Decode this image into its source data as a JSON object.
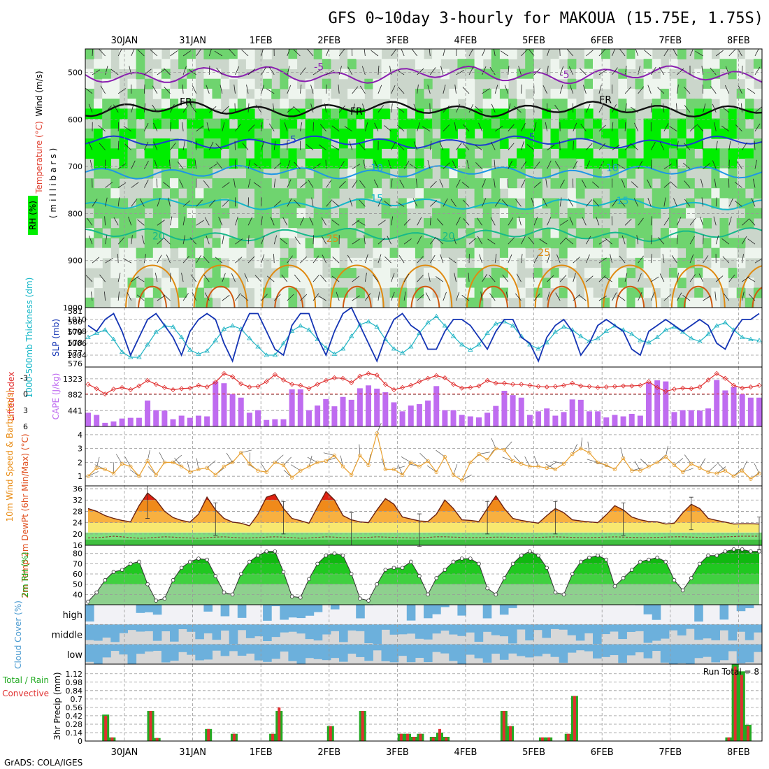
{
  "header": {
    "title": "GFS 0~10day 3-hourly for MAKOUA (15.75E, 1.75S)",
    "credit": "GrADS: COLA/IGES"
  },
  "colors": {
    "rh_light": "#eef5ee",
    "rh_gray": "#cbd6cb",
    "rh_mid": "#6fd46f",
    "rh_bright": "#00ee00",
    "temp_purple": "#8a1fb0",
    "temp_blue": "#1e3ccf",
    "temp_lightblue": "#1e96e6",
    "temp_cyan": "#16b7c8",
    "temp_teal": "#16b98a",
    "temp_orange": "#e08a10",
    "slp_line": "#1434b4",
    "thickness_line": "#20b4c4",
    "lifted_index": "#e03030",
    "cape_bar": "#bf6cf0",
    "wind_speed": "#e8a030",
    "temp_fill": "#f08a1a",
    "temp_hot": "#e02010",
    "dewpt_fill": "#60d060",
    "rh_fill": "#18c818",
    "cloud_blue": "#6cb0dc",
    "cloud_gray": "#d8d8d8",
    "rain_total": "#22aa22",
    "rain_convective": "#e03030"
  },
  "chart_data": [
    {
      "type": "heatmap",
      "name": "upper-air",
      "ylabel": "(millibars)",
      "legend_labels": [
        "Wind (m/s)",
        "Temperature (°C)",
        "RH (%)"
      ],
      "x_date_ticks": [
        "30JAN",
        "31JAN",
        "1FEB",
        "2FEB",
        "3FEB",
        "4FEB",
        "5FEB",
        "6FEB",
        "7FEB",
        "8FEB"
      ],
      "y_ticks": [
        500,
        600,
        700,
        800,
        900,
        1000
      ],
      "ylim": [
        1000,
        450
      ],
      "contour_labels": [
        {
          "text": "-5",
          "day": 2.85,
          "p": 495
        },
        {
          "text": "-5",
          "day": 6.45,
          "p": 512
        },
        {
          "text": "FR",
          "day": 0.9,
          "p": 570
        },
        {
          "text": "FR",
          "day": 3.4,
          "p": 590
        },
        {
          "text": "FR",
          "day": 7.05,
          "p": 565
        },
        {
          "text": "-5",
          "day": 2.45,
          "p": 650
        },
        {
          "text": "-5",
          "day": 5.95,
          "p": 645
        },
        {
          "text": "10",
          "day": 3.7,
          "p": 710
        },
        {
          "text": "10",
          "day": 7.15,
          "p": 710
        },
        {
          "text": "15",
          "day": 3.7,
          "p": 775
        },
        {
          "text": "15",
          "day": 7.3,
          "p": 780
        },
        {
          "text": "20",
          "day": 0.5,
          "p": 855
        },
        {
          "text": "20",
          "day": 4.75,
          "p": 855
        },
        {
          "text": "25",
          "day": 3.05,
          "p": 860
        },
        {
          "text": "25",
          "day": 6.15,
          "p": 890
        }
      ],
      "isotherms": [
        {
          "name": "-5 upper",
          "color_key": "temp_purple",
          "base_p": 505,
          "amp": 12
        },
        {
          "name": "FR",
          "color_key": "temp_black",
          "base_p": 578,
          "amp": 10
        },
        {
          "name": "-5",
          "color_key": "temp_blue",
          "base_p": 648,
          "amp": 8
        },
        {
          "name": "10",
          "color_key": "temp_lightblue",
          "base_p": 712,
          "amp": 9
        },
        {
          "name": "15",
          "color_key": "temp_cyan",
          "base_p": 780,
          "amp": 8
        },
        {
          "name": "20",
          "color_key": "temp_teal",
          "base_p": 845,
          "amp": 9
        }
      ]
    },
    {
      "type": "line",
      "name": "slp-thickness",
      "ylabel_left": "1000-500mb Thickness (dm)",
      "ylabel_right": "SLP (mb)",
      "y_ticks_left": [
        576,
        577,
        578,
        579,
        580,
        581
      ],
      "y_ticks_right": [
        1004,
        1006,
        1008,
        1010
      ],
      "ylim_right": [
        1002,
        1012
      ],
      "slp_values": [
        1009,
        1008,
        1010,
        1011,
        1008,
        1004,
        1007,
        1010,
        1011,
        1009,
        1007,
        1004,
        1008,
        1010,
        1011,
        1010,
        1006,
        1003,
        1008,
        1011,
        1011,
        1008,
        1005,
        1004,
        1009,
        1011,
        1011,
        1007,
        1004,
        1008,
        1011,
        1012,
        1009,
        1006,
        1003,
        1007,
        1010,
        1011,
        1009,
        1008,
        1005,
        1005,
        1008,
        1010,
        1010,
        1009,
        1007,
        1005,
        1008,
        1010,
        1010,
        1007,
        1006,
        1003,
        1007,
        1009,
        1010,
        1008,
        1004,
        1006,
        1009,
        1010,
        1009,
        1008,
        1005,
        1004,
        1008,
        1009,
        1010,
        1009,
        1008,
        1009,
        1010,
        1009,
        1006,
        1005,
        1008,
        1010,
        1010,
        1011
      ],
      "thickness_values": [
        578.5,
        578.9,
        579.2,
        578.3,
        577.1,
        576.6,
        576.6,
        577.8,
        579.0,
        579.6,
        579.5,
        578.5,
        577.3,
        576.9,
        577.2,
        578.2,
        579.3,
        579.6,
        579.3,
        578.4,
        577.6,
        576.8,
        576.8,
        577.9,
        579.1,
        579.6,
        579.2,
        578.3,
        577.5,
        576.9,
        577.4,
        578.6,
        579.7,
        580.0,
        579.5,
        578.3,
        577.4,
        577.0,
        577.6,
        578.9,
        579.9,
        580.5,
        579.6,
        578.6,
        577.8,
        577.3,
        577.8,
        578.9,
        579.8,
        580.0,
        579.6,
        578.6,
        577.8,
        577.4,
        578.0,
        579.0,
        579.5,
        579.2,
        578.6,
        578.1,
        578.4,
        579.1,
        579.6,
        579.2,
        578.8,
        578.2,
        578.0,
        578.5,
        579.2,
        579.5,
        579.0,
        578.4,
        578.1,
        578.8,
        579.6,
        579.9,
        579.2,
        578.5,
        578.3,
        578.2
      ]
    },
    {
      "type": "bar",
      "name": "cape-lifted-index",
      "ylabel_left": "Lifted Index",
      "ylabel_right": "CAPE (J/kg)",
      "y_ticks_left": [
        -3,
        0,
        3,
        6
      ],
      "y_ticks_right": [
        441,
        882,
        1323
      ],
      "ylim_left": [
        -5,
        6
      ],
      "ylim_right": [
        0,
        1650
      ],
      "cape_values": [
        380,
        320,
        100,
        140,
        220,
        240,
        240,
        720,
        450,
        440,
        200,
        300,
        240,
        300,
        280,
        1250,
        1200,
        900,
        800,
        380,
        450,
        180,
        200,
        200,
        1030,
        1030,
        450,
        580,
        760,
        560,
        820,
        740,
        1060,
        1140,
        1050,
        950,
        670,
        420,
        580,
        620,
        720,
        1120,
        450,
        450,
        320,
        280,
        250,
        380,
        570,
        990,
        870,
        800,
        320,
        420,
        500,
        300,
        400,
        750,
        740,
        420,
        420,
        250,
        320,
        280,
        350,
        300,
        1220,
        1280,
        1250,
        400,
        450,
        450,
        440,
        500,
        1290,
        1000,
        1100,
        900,
        800,
        800
      ],
      "lifted_index": [
        -1.8,
        -1.0,
        0.0,
        -0.9,
        -1.2,
        -0.8,
        -1.5,
        -2.5,
        -1.8,
        -1.2,
        -0.8,
        -1.0,
        -1.1,
        -1.6,
        -1.3,
        -2.2,
        -3.8,
        -3.2,
        -1.9,
        -1.3,
        -1.4,
        -2.3,
        -3.6,
        -2.6,
        -1.8,
        -1.6,
        -1.0,
        -1.8,
        -2.5,
        -3.0,
        -2.9,
        -2.1,
        -3.3,
        -3.8,
        -3.5,
        -1.8,
        -0.8,
        -1.2,
        -1.6,
        -2.3,
        -2.9,
        -3.4,
        -3.0,
        -1.8,
        -1.1,
        -1.2,
        -1.5,
        -2.5,
        -2.0,
        -2.0,
        -1.8,
        -1.8,
        -1.6,
        -1.4,
        -1.3,
        -1.4,
        -1.6,
        -2.0,
        -1.5,
        -1.4,
        -1.2,
        -1.3,
        -1.4,
        -1.5,
        -1.5,
        -1.6,
        -2.3,
        -1.2,
        -0.5,
        -0.9,
        -1.1,
        -1.0,
        -1.3,
        -2.6,
        -3.8,
        -2.9,
        -1.6,
        -1.1,
        -1.3,
        -1.6
      ]
    },
    {
      "type": "line",
      "name": "wind-10m",
      "ylabel": "10m Wind Speed & Barbs (m/s)",
      "y_ticks": [
        1,
        2,
        3,
        4
      ],
      "ylim": [
        0.3,
        4.6
      ],
      "values": [
        1.0,
        1.6,
        1.5,
        1.2,
        1.9,
        1.7,
        1.0,
        2.1,
        1.1,
        2.0,
        2.0,
        1.7,
        1.3,
        1.5,
        1.6,
        1.1,
        1.7,
        2.0,
        2.7,
        1.9,
        1.4,
        1.3,
        2.0,
        1.8,
        0.9,
        1.4,
        1.7,
        2.0,
        2.1,
        2.5,
        1.7,
        1.1,
        2.5,
        1.8,
        4.1,
        1.5,
        1.5,
        1.1,
        2.0,
        1.7,
        2.1,
        1.3,
        2.4,
        1.1,
        0.7,
        2.0,
        2.6,
        2.2,
        3.0,
        2.9,
        2.1,
        1.9,
        1.7,
        1.7,
        1.6,
        1.5,
        1.9,
        2.6,
        3.0,
        2.7,
        2.0,
        1.8,
        1.5,
        2.3,
        1.4,
        1.4,
        1.7,
        2.0,
        2.4,
        1.8,
        1.3,
        1.9,
        1.6,
        1.3,
        1.2,
        1.4,
        1.0,
        1.4,
        0.8,
        1.2
      ]
    },
    {
      "type": "area",
      "name": "temp-dewpt",
      "ylabel": "2m Temp 2m DewPt (6hr Min/Max) (°C)",
      "y_ticks": [
        16,
        20,
        24,
        28,
        32,
        36
      ],
      "ylim": [
        16,
        37
      ],
      "temp_values": [
        29.0,
        28.0,
        26.5,
        25.5,
        24.8,
        24.3,
        30.0,
        34.5,
        32.0,
        28.0,
        25.8,
        24.8,
        24.2,
        27.0,
        33.0,
        28.5,
        25.5,
        24.2,
        23.8,
        22.9,
        27.0,
        33.0,
        34.0,
        29.0,
        25.5,
        24.7,
        23.8,
        29.5,
        35.0,
        32.0,
        26.5,
        25.0,
        24.3,
        24.0,
        28.5,
        32.5,
        30.5,
        26.0,
        25.3,
        24.6,
        24.4,
        27.0,
        32.0,
        29.0,
        25.0,
        24.8,
        24.4,
        29.0,
        33.5,
        29.0,
        25.5,
        24.8,
        24.3,
        23.8,
        26.5,
        29.0,
        27.5,
        25.0,
        24.6,
        24.3,
        24.0,
        26.8,
        30.0,
        28.5,
        26.0,
        25.0,
        24.4,
        24.3,
        23.5,
        23.8,
        27.5,
        30.5,
        29.0,
        25.5,
        24.8,
        24.2,
        23.5,
        23.6,
        23.6,
        23.5
      ],
      "dewpt_values": [
        20.2,
        20.3,
        20.5,
        20.8,
        20.6,
        20.3,
        20.1,
        20.2,
        20.4,
        20.6,
        20.5,
        20.3,
        20.2,
        20.1,
        20.3,
        20.5,
        20.6,
        20.4,
        20.2,
        20.2,
        20.3,
        20.5,
        20.6,
        20.5,
        20.3,
        20.1,
        20.2,
        20.4,
        20.6,
        20.5,
        20.3,
        20.2,
        20.3,
        20.4,
        20.6,
        20.5,
        20.4,
        20.3,
        20.2,
        20.2,
        20.4,
        20.6,
        20.6,
        20.5,
        20.4,
        20.3,
        20.3,
        20.4,
        20.5,
        20.5,
        20.4,
        20.3,
        20.3,
        20.4,
        20.5,
        20.6,
        20.5,
        20.4,
        20.3,
        20.3,
        20.4,
        20.5,
        20.6,
        20.5,
        20.4,
        20.3,
        20.3,
        20.4,
        20.5,
        20.6,
        20.6,
        20.5,
        20.4,
        20.4,
        20.5,
        20.6,
        20.7,
        20.8,
        20.8,
        20.8
      ]
    },
    {
      "type": "area",
      "name": "rh-2m",
      "ylabel": "2m RH (%)",
      "y_ticks": [
        40,
        50,
        60,
        70,
        80
      ],
      "ylim": [
        30,
        88
      ],
      "values": [
        33,
        42,
        54,
        62,
        64,
        70,
        72,
        50,
        34,
        36,
        54,
        66,
        72,
        75,
        74,
        58,
        42,
        40,
        60,
        72,
        78,
        82,
        82,
        62,
        38,
        37,
        55,
        70,
        78,
        80,
        78,
        60,
        36,
        34,
        50,
        64,
        66,
        66,
        72,
        58,
        40,
        56,
        64,
        72,
        75,
        75,
        70,
        46,
        40,
        56,
        70,
        78,
        82,
        78,
        66,
        42,
        40,
        60,
        72,
        76,
        78,
        74,
        48,
        56,
        64,
        72,
        74,
        76,
        72,
        54,
        44,
        56,
        70,
        78,
        78,
        82,
        84,
        84,
        82,
        82
      ]
    },
    {
      "type": "heatmap",
      "name": "cloud-cover",
      "ylabel": "Cloud Cover (%)",
      "rows": [
        "high",
        "middle",
        "low"
      ]
    },
    {
      "type": "bar",
      "name": "precip",
      "ylabel": "3hr Precip (mm)",
      "legend_labels": [
        "Total / Rain",
        "Convective"
      ],
      "annotation": "Run Total = 8",
      "y_ticks": [
        "0",
        "0.14",
        "0.28",
        "0.42",
        "0.56",
        "0.7",
        "0.84",
        "0.98",
        "1.12"
      ],
      "ylim": [
        0,
        1.28
      ],
      "total": [
        0,
        0.44,
        0.06,
        0,
        0,
        0,
        0,
        0,
        0.5,
        0.05,
        0,
        0,
        0,
        0,
        0,
        0,
        0,
        0.2,
        0,
        0,
        0,
        0.12,
        0,
        0,
        0,
        0,
        0,
        0.12,
        0.5,
        0,
        0,
        0,
        0,
        0,
        0,
        0,
        0.25,
        0,
        0,
        0,
        0,
        0.5,
        0,
        0,
        0,
        0,
        0,
        0.12,
        0.12,
        0.07,
        0.12,
        0,
        0.07,
        0.14,
        0.07,
        0,
        0,
        0,
        0,
        0,
        0,
        0,
        0,
        0.5,
        0.25,
        0,
        0,
        0,
        0,
        0.06,
        0.06,
        0,
        0,
        0.12,
        0.75,
        0,
        0,
        0,
        0,
        0,
        0,
        0,
        0,
        0,
        0,
        0,
        0,
        0,
        0,
        0,
        0,
        0,
        0,
        0,
        0,
        0,
        0,
        0,
        0.06,
        1.28,
        1.16,
        0.27
      ],
      "convective": [
        0,
        0.42,
        0.06,
        0,
        0,
        0,
        0,
        0,
        0.5,
        0.05,
        0,
        0,
        0,
        0,
        0,
        0,
        0,
        0.2,
        0,
        0,
        0,
        0.12,
        0,
        0,
        0,
        0,
        0,
        0.12,
        0.56,
        0,
        0,
        0,
        0,
        0,
        0,
        0,
        0.25,
        0,
        0,
        0,
        0,
        0.5,
        0,
        0,
        0,
        0,
        0,
        0.12,
        0.12,
        0.07,
        0.12,
        0,
        0.06,
        0.2,
        0.06,
        0,
        0,
        0,
        0,
        0,
        0,
        0,
        0,
        0.5,
        0.25,
        0,
        0,
        0,
        0,
        0.06,
        0.06,
        0,
        0,
        0.12,
        0.75,
        0,
        0,
        0,
        0,
        0,
        0,
        0,
        0,
        0,
        0,
        0,
        0,
        0,
        0,
        0,
        0,
        0,
        0,
        0,
        0,
        0,
        0,
        0,
        0.06,
        1.24,
        1.1,
        0.25
      ]
    }
  ]
}
